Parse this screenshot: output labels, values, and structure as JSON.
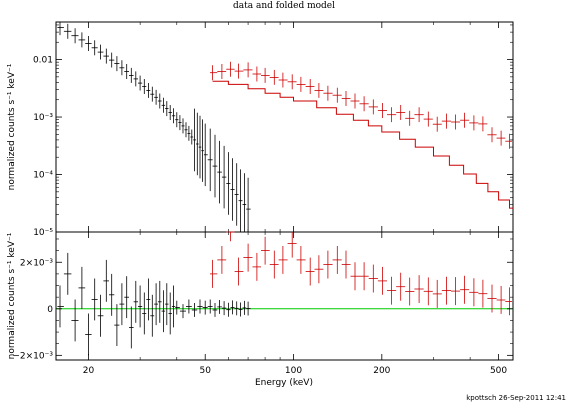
{
  "chart_data": {
    "type": "scatter",
    "title": "data and folded model",
    "xlabel": "Energy (keV)",
    "xscale": "log",
    "xlim": [
      15.5,
      560
    ],
    "x_ticks": [
      20,
      50,
      100,
      200,
      500
    ],
    "x_tick_labels": [
      "20",
      "50",
      "100",
      "200",
      "500"
    ],
    "footer": "kpottsch 26-Sep-2011 12:41",
    "colors": {
      "black_series": "#000000",
      "red_series": "#cc0000",
      "zero_line": "#00cc00",
      "frame": "#000000"
    },
    "panels": [
      {
        "name": "top",
        "ylabel": "normalized counts s⁻¹ keV⁻¹",
        "yscale": "log",
        "ylim": [
          1e-05,
          0.045
        ],
        "y_ticks": [
          1e-05,
          0.0001,
          0.001,
          0.01
        ],
        "y_tick_labels": [
          "10⁻⁵",
          "10⁻⁴",
          "10⁻³",
          "0.01"
        ],
        "series": [
          {
            "color": "black",
            "style": "errorbar-dense",
            "points": [
              [
                16,
                0.036
              ],
              [
                17,
                0.031
              ],
              [
                18,
                0.026
              ],
              [
                19,
                0.022
              ],
              [
                20,
                0.019
              ],
              [
                21,
                0.016
              ],
              [
                22,
                0.0135
              ],
              [
                23,
                0.0115
              ],
              [
                24,
                0.0098
              ],
              [
                25,
                0.0085
              ],
              [
                26,
                0.0072
              ],
              [
                27,
                0.0062
              ],
              [
                28,
                0.0053
              ],
              [
                29,
                0.0046
              ],
              [
                30,
                0.0039
              ],
              [
                31,
                0.0034
              ],
              [
                32,
                0.0029
              ],
              [
                33,
                0.0025
              ],
              [
                34,
                0.0022
              ],
              [
                35,
                0.0019
              ],
              [
                36,
                0.0016
              ],
              [
                37,
                0.0014
              ],
              [
                38,
                0.0012
              ],
              [
                39,
                0.00105
              ],
              [
                40,
                0.0009
              ],
              [
                41,
                0.0008
              ],
              [
                42,
                0.0007
              ],
              [
                43,
                0.0006
              ],
              [
                44,
                0.00052
              ],
              [
                45,
                0.00045
              ],
              [
                46,
                0.0004
              ],
              [
                47,
                0.00034
              ],
              [
                48,
                0.0003
              ],
              [
                49,
                0.00026
              ],
              [
                50,
                0.00022
              ],
              [
                52,
                0.00018
              ],
              [
                54,
                0.00014
              ],
              [
                56,
                0.00011
              ],
              [
                58,
                9e-05
              ],
              [
                60,
                7e-05
              ],
              [
                62,
                5.5e-05
              ],
              [
                64,
                4.5e-05
              ],
              [
                66,
                3.5e-05
              ],
              [
                68,
                3e-05
              ],
              [
                70,
                2.5e-05
              ]
            ]
          },
          {
            "color": "red",
            "style": "errorbar",
            "points": [
              [
                53,
                0.0059
              ],
              [
                57,
                0.0062
              ],
              [
                61,
                0.0068
              ],
              [
                65,
                0.0063
              ],
              [
                70,
                0.0066
              ],
              [
                75,
                0.0056
              ],
              [
                80,
                0.0053
              ],
              [
                86,
                0.0049
              ],
              [
                92,
                0.0044
              ],
              [
                99,
                0.0041
              ],
              [
                106,
                0.0037
              ],
              [
                114,
                0.0034
              ],
              [
                122,
                0.0029
              ],
              [
                131,
                0.0026
              ],
              [
                141,
                0.0024
              ],
              [
                151,
                0.0021
              ],
              [
                162,
                0.0019
              ],
              [
                174,
                0.0017
              ],
              [
                187,
                0.0015
              ],
              [
                201,
                0.0013
              ],
              [
                216,
                0.0011
              ],
              [
                232,
                0.0012
              ],
              [
                249,
                0.00095
              ],
              [
                268,
                0.0011
              ],
              [
                288,
                0.00092
              ],
              [
                309,
                0.00075
              ],
              [
                332,
                0.00085
              ],
              [
                357,
                0.00082
              ],
              [
                383,
                0.00088
              ],
              [
                412,
                0.00079
              ],
              [
                442,
                0.00076
              ],
              [
                475,
                0.00049
              ],
              [
                510,
                0.00043
              ],
              [
                545,
                0.00038
              ]
            ]
          },
          {
            "color": "red",
            "style": "model-step",
            "points": [
              [
                53,
                0.0042
              ],
              [
                60,
                0.0037
              ],
              [
                70,
                0.0031
              ],
              [
                80,
                0.0026
              ],
              [
                90,
                0.0022
              ],
              [
                100,
                0.0019
              ],
              [
                120,
                0.00145
              ],
              [
                140,
                0.00112
              ],
              [
                160,
                0.00088
              ],
              [
                180,
                0.0007
              ],
              [
                200,
                0.00055
              ],
              [
                230,
                0.00041
              ],
              [
                260,
                0.0003
              ],
              [
                300,
                0.00021
              ],
              [
                340,
                0.000145
              ],
              [
                380,
                0.000102
              ],
              [
                420,
                7e-05
              ],
              [
                460,
                5e-05
              ],
              [
                500,
                3.6e-05
              ],
              [
                545,
                2.6e-05
              ]
            ]
          }
        ]
      },
      {
        "name": "bottom",
        "ylabel": "normalized counts s⁻¹ keV⁻¹",
        "yscale": "linear",
        "ylim": [
          -0.0022,
          0.0033
        ],
        "y_ticks": [
          -0.002,
          0,
          0.002
        ],
        "y_tick_labels": [
          "−2×10⁻³",
          "0",
          "2×10⁻³"
        ],
        "zero_line": 0,
        "series": [
          {
            "color": "black",
            "style": "errorbar-dense",
            "points": [
              [
                16,
                0.0001
              ],
              [
                17,
                0.0015
              ],
              [
                18,
                -0.0005
              ],
              [
                19,
                0.0009
              ],
              [
                20,
                -0.0011
              ],
              [
                21,
                0.0004
              ],
              [
                22,
                -0.0003
              ],
              [
                23,
                0.0012
              ],
              [
                24,
                0.0006
              ],
              [
                25,
                -0.0007
              ],
              [
                26,
                0.0002
              ],
              [
                27,
                0.0005
              ],
              [
                28,
                -0.0008
              ],
              [
                29,
                0.0003
              ],
              [
                30,
                0.0001
              ],
              [
                31,
                -0.0002
              ],
              [
                32,
                0.0004
              ],
              [
                33,
                -0.0003
              ],
              [
                34,
                0.0002
              ],
              [
                35,
                0.0003
              ],
              [
                36,
                -0.0001
              ],
              [
                37,
                0.0002
              ],
              [
                38,
                -0.0002
              ],
              [
                39,
                0.0001
              ],
              [
                40,
                5e-05
              ],
              [
                42,
                -0.0001
              ],
              [
                44,
                0.0001
              ],
              [
                46,
                -5e-05
              ],
              [
                48,
                0.0001
              ],
              [
                50,
                5e-05
              ],
              [
                52,
                0.0001
              ],
              [
                54,
                -5e-05
              ],
              [
                56,
                8e-05
              ],
              [
                58,
                3e-05
              ],
              [
                60,
                -4e-05
              ],
              [
                62,
                6e-05
              ],
              [
                64,
                2e-05
              ],
              [
                66,
                -3e-05
              ],
              [
                68,
                4e-05
              ],
              [
                70,
                1e-05
              ]
            ]
          },
          {
            "color": "red",
            "style": "errorbar",
            "points": [
              [
                53,
                0.0015
              ],
              [
                57,
                0.0021
              ],
              [
                61,
                0.0035
              ],
              [
                65,
                0.0016
              ],
              [
                70,
                0.0022
              ],
              [
                75,
                0.0018
              ],
              [
                80,
                0.0025
              ],
              [
                86,
                0.0019
              ],
              [
                92,
                0.0021
              ],
              [
                99,
                0.0028
              ],
              [
                106,
                0.0021
              ],
              [
                114,
                0.0016
              ],
              [
                122,
                0.0017
              ],
              [
                131,
                0.0019
              ],
              [
                141,
                0.0021
              ],
              [
                151,
                0.0019
              ],
              [
                162,
                0.0014
              ],
              [
                174,
                0.0014
              ],
              [
                187,
                0.0013
              ],
              [
                201,
                0.0012
              ],
              [
                216,
                0.00078
              ],
              [
                232,
                0.00095
              ],
              [
                249,
                0.00074
              ],
              [
                268,
                0.00085
              ],
              [
                288,
                0.00075
              ],
              [
                309,
                0.00064
              ],
              [
                332,
                0.00078
              ],
              [
                357,
                0.00076
              ],
              [
                383,
                0.00082
              ],
              [
                412,
                0.00071
              ],
              [
                442,
                0.00065
              ],
              [
                475,
                0.00044
              ],
              [
                510,
                0.00038
              ],
              [
                545,
                0.00032
              ]
            ]
          }
        ]
      }
    ]
  }
}
